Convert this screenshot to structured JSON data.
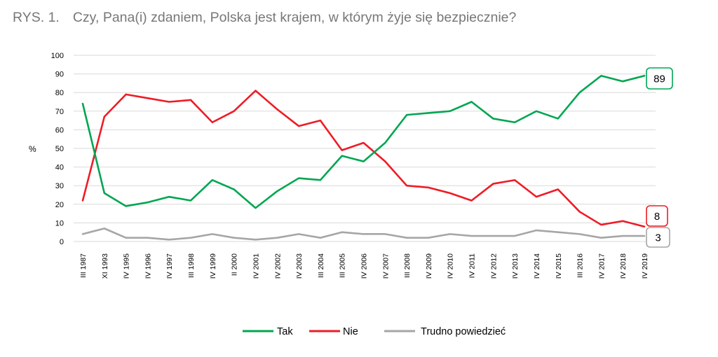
{
  "header": {
    "figure_number": "RYS. 1.",
    "question": "Czy, Pana(i) zdaniem, Polska jest krajem, w którym żyje się bezpiecznie?"
  },
  "chart_data": {
    "type": "line",
    "ylabel": "%",
    "xlabel": "",
    "ylim": [
      0,
      100
    ],
    "yticks": [
      0,
      10,
      20,
      30,
      40,
      50,
      60,
      70,
      80,
      90,
      100
    ],
    "grid": true,
    "legend_position": "bottom",
    "categories": [
      "III 1987",
      "XI 1993",
      "IV 1995",
      "IV 1996",
      "IV 1997",
      "III 1998",
      "IV 1999",
      "II 2000",
      "IV 2001",
      "IV 2002",
      "IV 2003",
      "III 2004",
      "III 2005",
      "IV 2006",
      "IV 2007",
      "III 2008",
      "IV 2009",
      "IV 2010",
      "IV 2011",
      "IV 2012",
      "IV 2013",
      "IV 2014",
      "IV 2015",
      "III 2016",
      "IV 2017",
      "IV 2018",
      "IV 2019"
    ],
    "series": [
      {
        "name": "Tak",
        "color": "#00A651",
        "values": [
          74,
          26,
          19,
          21,
          24,
          22,
          33,
          28,
          18,
          27,
          34,
          33,
          46,
          43,
          53,
          68,
          69,
          70,
          75,
          66,
          64,
          70,
          66,
          80,
          89,
          86,
          89
        ],
        "end_label": "89"
      },
      {
        "name": "Nie",
        "color": "#EE1C25",
        "values": [
          22,
          67,
          79,
          77,
          75,
          76,
          64,
          70,
          81,
          71,
          62,
          65,
          49,
          53,
          43,
          30,
          29,
          26,
          22,
          31,
          33,
          24,
          28,
          16,
          9,
          11,
          8
        ],
        "end_label": "8"
      },
      {
        "name": "Trudno powiedzieć",
        "color": "#A6A6A6",
        "values": [
          4,
          7,
          2,
          2,
          1,
          2,
          4,
          2,
          1,
          2,
          4,
          2,
          5,
          4,
          4,
          2,
          2,
          4,
          3,
          3,
          3,
          6,
          5,
          4,
          2,
          3,
          3
        ],
        "end_label": "3"
      }
    ]
  }
}
